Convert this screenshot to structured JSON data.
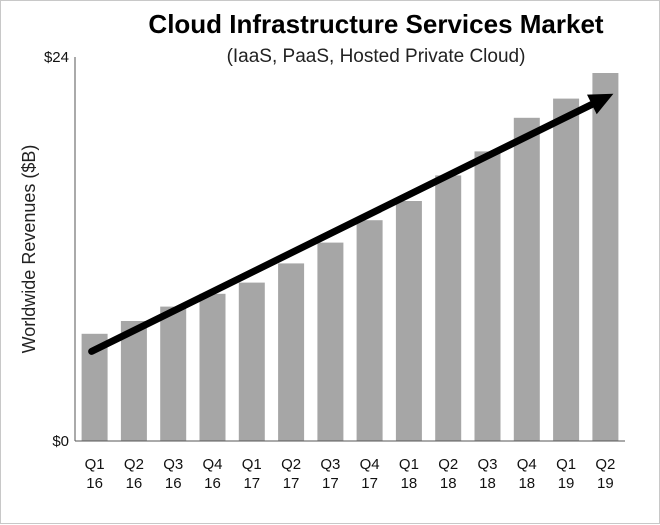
{
  "chart_data": {
    "type": "bar",
    "title": "Cloud Infrastructure Services Market",
    "subtitle": "(IaaS, PaaS, Hosted Private Cloud)",
    "xlabel": "",
    "ylabel": "Worldwide Revenues ($B)",
    "ylim": [
      0,
      24
    ],
    "yticks": [
      {
        "value": 0,
        "label": "$0"
      },
      {
        "value": 24,
        "label": "$24"
      }
    ],
    "categories": [
      {
        "q": "Q1",
        "y": "16"
      },
      {
        "q": "Q2",
        "y": "16"
      },
      {
        "q": "Q3",
        "y": "16"
      },
      {
        "q": "Q4",
        "y": "16"
      },
      {
        "q": "Q1",
        "y": "17"
      },
      {
        "q": "Q2",
        "y": "17"
      },
      {
        "q": "Q3",
        "y": "17"
      },
      {
        "q": "Q4",
        "y": "17"
      },
      {
        "q": "Q1",
        "y": "18"
      },
      {
        "q": "Q2",
        "y": "18"
      },
      {
        "q": "Q3",
        "y": "18"
      },
      {
        "q": "Q4",
        "y": "18"
      },
      {
        "q": "Q1",
        "y": "19"
      },
      {
        "q": "Q2",
        "y": "19"
      }
    ],
    "values": [
      6.7,
      7.5,
      8.4,
      9.2,
      9.9,
      11.1,
      12.4,
      13.8,
      15.0,
      16.6,
      18.1,
      20.2,
      21.4,
      23.0
    ],
    "trend_arrow": {
      "from": {
        "index": 0,
        "value": 5.6
      },
      "to": {
        "index": 13,
        "value": 21.7
      }
    },
    "bar_color": "#a6a6a6",
    "arrow_color": "#000000",
    "grid": false,
    "legend": "none"
  }
}
